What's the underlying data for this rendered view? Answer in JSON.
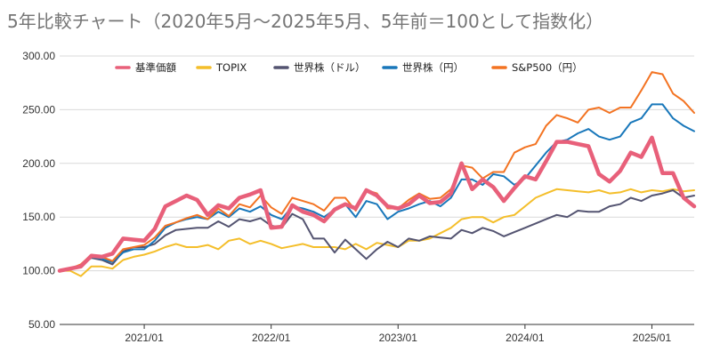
{
  "chart_data": {
    "type": "line",
    "title": "5年比較チャート（2020年5月〜2025年5月、5年前＝100として指数化）",
    "xlabel": "",
    "ylabel": "",
    "ylim": [
      50,
      300
    ],
    "y_ticks": [
      "50.00",
      "100.00",
      "150.00",
      "200.00",
      "250.00",
      "300.00"
    ],
    "y_tick_values": [
      50,
      100,
      150,
      200,
      250,
      300
    ],
    "x_ticks": [
      "2021/01",
      "2022/01",
      "2023/01",
      "2024/01",
      "2025/01"
    ],
    "x_tick_values": [
      "2021-01",
      "2022-01",
      "2023-01",
      "2024-01",
      "2025-01"
    ],
    "x_range": [
      "2020-05",
      "2025-05"
    ],
    "grid": "horizontal",
    "legend_position": "top",
    "x": [
      "2020-05",
      "2020-06",
      "2020-07",
      "2020-08",
      "2020-09",
      "2020-10",
      "2020-11",
      "2020-12",
      "2021-01",
      "2021-02",
      "2021-03",
      "2021-04",
      "2021-05",
      "2021-06",
      "2021-07",
      "2021-08",
      "2021-09",
      "2021-10",
      "2021-11",
      "2021-12",
      "2022-01",
      "2022-02",
      "2022-03",
      "2022-04",
      "2022-05",
      "2022-06",
      "2022-07",
      "2022-08",
      "2022-09",
      "2022-10",
      "2022-11",
      "2022-12",
      "2023-01",
      "2023-02",
      "2023-03",
      "2023-04",
      "2023-05",
      "2023-06",
      "2023-07",
      "2023-08",
      "2023-09",
      "2023-10",
      "2023-11",
      "2023-12",
      "2024-01",
      "2024-02",
      "2024-03",
      "2024-04",
      "2024-05",
      "2024-06",
      "2024-07",
      "2024-08",
      "2024-09",
      "2024-10",
      "2024-11",
      "2024-12",
      "2025-01",
      "2025-02",
      "2025-03",
      "2025-04",
      "2025-05"
    ],
    "series": [
      {
        "name": "基準価額",
        "color": "#e8607a",
        "width": 4.5,
        "values": [
          100,
          102,
          104,
          114,
          113,
          116,
          130,
          129,
          128,
          139,
          160,
          165,
          170,
          166,
          152,
          161,
          158,
          168,
          171,
          175,
          140,
          141,
          161,
          155,
          152,
          146,
          157,
          162,
          158,
          175,
          170,
          160,
          158,
          162,
          170,
          163,
          164,
          172,
          200,
          176,
          185,
          178,
          165,
          177,
          188,
          185,
          202,
          220,
          220,
          218,
          216,
          190,
          183,
          193,
          210,
          206,
          224,
          191,
          191,
          168,
          160
        ]
      },
      {
        "name": "TOPIX",
        "color": "#f4be2a",
        "width": 2,
        "values": [
          100,
          100,
          95,
          104,
          104,
          102,
          110,
          113,
          115,
          118,
          122,
          125,
          122,
          122,
          124,
          120,
          128,
          130,
          125,
          128,
          125,
          121,
          123,
          125,
          122,
          122,
          122,
          120,
          125,
          120,
          126,
          124,
          122,
          128,
          128,
          130,
          135,
          140,
          148,
          150,
          150,
          145,
          150,
          152,
          160,
          168,
          172,
          176,
          175,
          174,
          173,
          175,
          172,
          173,
          176,
          173,
          175,
          174,
          176,
          174,
          175
        ]
      },
      {
        "name": "世界株（ドル）",
        "color": "#545471",
        "width": 2,
        "values": [
          100,
          101,
          105,
          112,
          110,
          106,
          118,
          122,
          122,
          125,
          133,
          138,
          139,
          140,
          140,
          146,
          141,
          148,
          146,
          149,
          142,
          140,
          153,
          148,
          130,
          130,
          117,
          129,
          120,
          111,
          120,
          127,
          122,
          130,
          128,
          132,
          131,
          130,
          138,
          135,
          140,
          137,
          132,
          136,
          140,
          144,
          148,
          152,
          150,
          156,
          155,
          155,
          160,
          162,
          168,
          165,
          170,
          172,
          175,
          168,
          170
        ]
      },
      {
        "name": "世界株（円）",
        "color": "#1877ba",
        "width": 2,
        "values": [
          100,
          101,
          105,
          113,
          111,
          108,
          117,
          120,
          120,
          128,
          140,
          145,
          148,
          150,
          148,
          155,
          150,
          158,
          155,
          160,
          152,
          148,
          160,
          158,
          155,
          150,
          157,
          162,
          150,
          165,
          162,
          148,
          155,
          158,
          162,
          165,
          160,
          168,
          185,
          185,
          180,
          190,
          188,
          180,
          186,
          198,
          210,
          220,
          222,
          228,
          232,
          225,
          222,
          225,
          238,
          242,
          255,
          255,
          242,
          235,
          230
        ]
      },
      {
        "name": "S&P500（円）",
        "color": "#f37322",
        "width": 2,
        "values": [
          100,
          102,
          106,
          115,
          113,
          109,
          120,
          122,
          124,
          131,
          142,
          145,
          149,
          152,
          148,
          158,
          151,
          162,
          159,
          170,
          159,
          153,
          168,
          165,
          162,
          156,
          168,
          168,
          156,
          175,
          172,
          158,
          158,
          166,
          172,
          167,
          168,
          176,
          198,
          196,
          186,
          192,
          192,
          210,
          215,
          218,
          235,
          245,
          242,
          238,
          250,
          252,
          247,
          252,
          252,
          268,
          285,
          283,
          265,
          258,
          247
        ]
      }
    ]
  }
}
